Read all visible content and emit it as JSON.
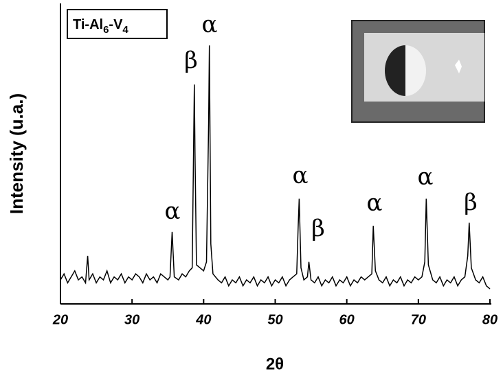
{
  "chart_data": {
    "type": "line",
    "xlabel": "2θ",
    "ylabel": "Intensity (u.a.)",
    "label_box": [
      "Ti-Al",
      "6",
      "-V",
      "4"
    ],
    "annotations": [
      "α",
      "β",
      "α",
      "α",
      "β",
      "α",
      "α",
      "β"
    ],
    "xlim": [
      20,
      80
    ],
    "xticks": [
      20,
      30,
      40,
      50,
      60,
      70,
      80
    ],
    "ylim": [
      0,
      100
    ],
    "color": "#000000",
    "x": [
      20,
      20.5,
      21,
      21.5,
      22,
      22.5,
      23,
      23.5,
      23.8,
      24,
      24.5,
      25,
      25.5,
      26,
      26.5,
      27,
      27.5,
      28,
      28.5,
      29,
      29.5,
      30,
      30.5,
      31,
      31.5,
      32,
      32.5,
      33,
      33.5,
      34,
      34.5,
      35,
      35.3,
      35.6,
      35.9,
      36.5,
      37,
      37.5,
      38,
      38.4,
      38.7,
      38.8,
      39,
      39.5,
      40,
      40.4,
      40.7,
      40.8,
      41,
      41.3,
      42,
      42.5,
      43,
      43.5,
      44,
      44.5,
      45,
      45.5,
      46,
      46.5,
      47,
      47.5,
      48,
      48.5,
      49,
      49.5,
      50,
      50.5,
      51,
      51.5,
      52,
      52.5,
      53,
      53.2,
      53.35,
      53.6,
      54,
      54.5,
      54.7,
      55,
      55.5,
      56,
      56.5,
      57,
      57.5,
      58,
      58.5,
      59,
      59.5,
      60,
      60.5,
      61,
      61.5,
      62,
      62.5,
      63,
      63.5,
      63.7,
      64,
      64.5,
      65,
      65.5,
      66,
      66.5,
      67,
      67.5,
      68,
      68.5,
      69,
      69.5,
      70,
      70.5,
      70.9,
      71.1,
      71.4,
      72,
      72.5,
      73,
      73.5,
      74,
      74.5,
      75,
      75.5,
      76,
      76.5,
      76.9,
      77.1,
      77.4,
      78,
      78.5,
      79,
      79.5,
      80
    ],
    "values": [
      8,
      10,
      7,
      9,
      11,
      8,
      9,
      7,
      16,
      8,
      10,
      7,
      9,
      8,
      11,
      7,
      9,
      8,
      10,
      7,
      9,
      8,
      10,
      9,
      7,
      10,
      8,
      9,
      7,
      10,
      9,
      8,
      9,
      24,
      9,
      8,
      10,
      9,
      11,
      12,
      73,
      50,
      13,
      12,
      11,
      14,
      60,
      86,
      20,
      10,
      8,
      7,
      9,
      6,
      8,
      7,
      9,
      6,
      8,
      7,
      9,
      6,
      8,
      7,
      9,
      6,
      8,
      7,
      9,
      6,
      8,
      9,
      10,
      25,
      35,
      12,
      8,
      9,
      14,
      8,
      7,
      9,
      6,
      8,
      7,
      9,
      6,
      8,
      7,
      9,
      6,
      8,
      7,
      9,
      8,
      9,
      10,
      26,
      11,
      8,
      7,
      9,
      6,
      8,
      7,
      9,
      6,
      8,
      7,
      9,
      8,
      9,
      14,
      35,
      13,
      8,
      7,
      9,
      6,
      8,
      7,
      9,
      6,
      8,
      9,
      16,
      27,
      12,
      8,
      7,
      9,
      6,
      5
    ]
  }
}
